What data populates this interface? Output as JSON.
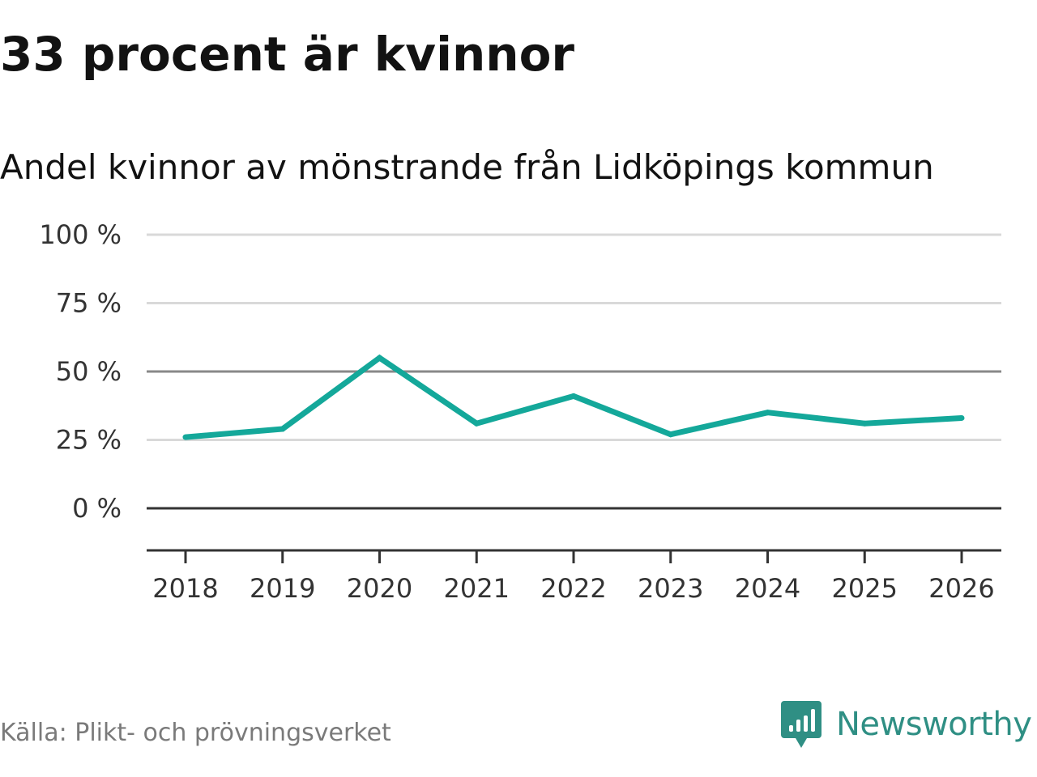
{
  "title": "33 procent är kvinnor",
  "subtitle": "Andel kvinnor av mönstrande från Lidköpings kommun",
  "source": "Källa: Plikt- och prövningsverket",
  "brand": {
    "name": "Newsworthy",
    "icon": "newsworthy-logo-icon",
    "color": "#2f8f84"
  },
  "colors": {
    "line": "#14a89a",
    "grid": "#d9d9d9",
    "reference": "#888888",
    "zero": "#333333"
  },
  "chart_data": {
    "type": "line",
    "title": "33 procent är kvinnor",
    "subtitle": "Andel kvinnor av mönstrande från Lidköpings kommun",
    "xlabel": "",
    "ylabel": "",
    "categories": [
      "2018",
      "2019",
      "2020",
      "2021",
      "2022",
      "2023",
      "2024",
      "2025",
      "2026"
    ],
    "series": [
      {
        "name": "Andel kvinnor",
        "values": [
          26,
          29,
          55,
          31,
          41,
          27,
          35,
          31,
          33
        ]
      }
    ],
    "ylim": [
      -15,
      100
    ],
    "yticks": [
      0,
      25,
      50,
      75,
      100
    ],
    "ytick_labels": [
      "0 %",
      "25 %",
      "50 %",
      "75 %",
      "100 %"
    ],
    "reference_line": 50,
    "grid": true,
    "legend": "none"
  }
}
